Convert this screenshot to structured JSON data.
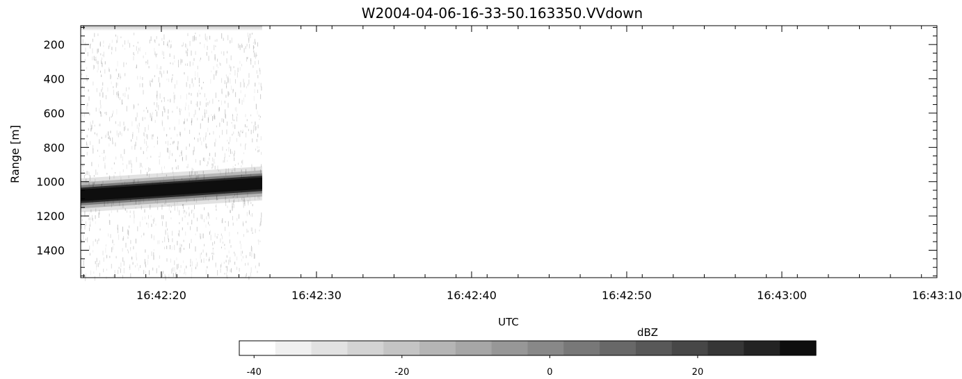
{
  "chart_data": {
    "type": "heatmap",
    "title": "W2004-04-06-16-33-50.163350.VVdown",
    "xlabel": "UTC",
    "ylabel": "Range [m]",
    "x_axis": {
      "kind": "time",
      "ticks": [
        "16:42:20",
        "16:42:30",
        "16:42:40",
        "16:42:50",
        "16:43:00",
        "16:43:10"
      ],
      "range": [
        "16:42:14.8",
        "16:43:10"
      ]
    },
    "y_axis": {
      "ticks": [
        200,
        400,
        600,
        800,
        1000,
        1200,
        1400
      ],
      "range": [
        1560,
        90
      ],
      "inverted": true
    },
    "data_extent": {
      "x": [
        "16:42:14.8",
        "16:42:26.5"
      ]
    },
    "features": [
      {
        "label": "surface echo band",
        "range_start_m": 1080,
        "range_end_m": 1010,
        "half_width_m": 45,
        "reflectivity_dbz": 30
      }
    ],
    "colorbar": {
      "label": "dBZ",
      "range": [
        -42,
        36
      ],
      "levels": 16,
      "ticks": [
        -40,
        -20,
        0,
        20
      ],
      "colors": [
        "#ffffff",
        "#f0f0f0",
        "#e2e2e2",
        "#d3d3d3",
        "#c4c4c4",
        "#b5b5b5",
        "#a6a6a6",
        "#979797",
        "#888888",
        "#787878",
        "#686868",
        "#585858",
        "#474747",
        "#363636",
        "#232323",
        "#0e0e0e"
      ]
    }
  }
}
